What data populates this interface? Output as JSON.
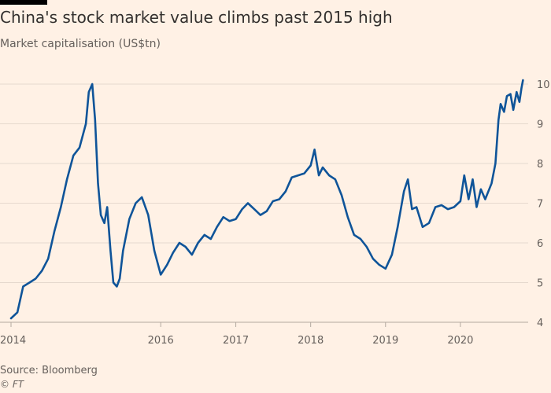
{
  "header": {
    "title": "China's stock market value climbs past 2015 high",
    "subtitle": "Market capitalisation (US$tn)"
  },
  "footer": {
    "source": "Source: Bloomberg",
    "credit": "© FT"
  },
  "colors": {
    "background": "#fff1e5",
    "line": "#0f5499",
    "grid": "#e6d9ce",
    "text": "#66605c"
  },
  "chart_data": {
    "type": "line",
    "title": "China's stock market value climbs past 2015 high",
    "ylabel": "Market capitalisation (US$tn)",
    "xlabel": "",
    "ylim": [
      4,
      10
    ],
    "xlim": [
      "2014-01-01",
      "2020-11-15"
    ],
    "grid": true,
    "y_axis_position": "right",
    "y_ticks": [
      "4",
      "5",
      "6",
      "7",
      "8",
      "9",
      "10"
    ],
    "x_ticks": [
      "2014",
      "2016",
      "2017",
      "2018",
      "2019",
      "2020"
    ],
    "series": [
      {
        "name": "",
        "points": [
          [
            "2014-01-01",
            4.1
          ],
          [
            "2014-02-01",
            4.25
          ],
          [
            "2014-03-01",
            4.9
          ],
          [
            "2014-04-01",
            5.0
          ],
          [
            "2014-05-01",
            5.1
          ],
          [
            "2014-06-01",
            5.3
          ],
          [
            "2014-07-01",
            5.6
          ],
          [
            "2014-08-01",
            6.3
          ],
          [
            "2014-09-01",
            6.9
          ],
          [
            "2014-10-01",
            7.6
          ],
          [
            "2014-11-01",
            8.2
          ],
          [
            "2014-12-01",
            8.4
          ],
          [
            "2015-01-01",
            9.0
          ],
          [
            "2015-01-15",
            9.8
          ],
          [
            "2015-02-01",
            10.0
          ],
          [
            "2015-02-15",
            9.1
          ],
          [
            "2015-03-01",
            7.5
          ],
          [
            "2015-03-15",
            6.7
          ],
          [
            "2015-04-01",
            6.5
          ],
          [
            "2015-04-15",
            6.9
          ],
          [
            "2015-05-01",
            5.8
          ],
          [
            "2015-05-15",
            5.0
          ],
          [
            "2015-06-01",
            4.9
          ],
          [
            "2015-06-15",
            5.1
          ],
          [
            "2015-07-01",
            5.8
          ],
          [
            "2015-08-01",
            6.6
          ],
          [
            "2015-09-01",
            7.0
          ],
          [
            "2015-10-01",
            7.15
          ],
          [
            "2015-11-01",
            6.7
          ],
          [
            "2015-12-01",
            5.8
          ],
          [
            "2016-01-01",
            5.2
          ],
          [
            "2016-02-01",
            5.45
          ],
          [
            "2016-03-01",
            5.75
          ],
          [
            "2016-04-01",
            6.0
          ],
          [
            "2016-05-01",
            5.9
          ],
          [
            "2016-06-01",
            5.7
          ],
          [
            "2016-07-01",
            6.0
          ],
          [
            "2016-08-01",
            6.2
          ],
          [
            "2016-09-01",
            6.1
          ],
          [
            "2016-10-01",
            6.4
          ],
          [
            "2016-11-01",
            6.65
          ],
          [
            "2016-12-01",
            6.55
          ],
          [
            "2017-01-01",
            6.6
          ],
          [
            "2017-02-01",
            6.85
          ],
          [
            "2017-03-01",
            7.0
          ],
          [
            "2017-04-01",
            6.85
          ],
          [
            "2017-05-01",
            6.7
          ],
          [
            "2017-06-01",
            6.8
          ],
          [
            "2017-07-01",
            7.05
          ],
          [
            "2017-08-01",
            7.1
          ],
          [
            "2017-09-01",
            7.3
          ],
          [
            "2017-10-01",
            7.65
          ],
          [
            "2017-11-01",
            7.7
          ],
          [
            "2017-12-01",
            7.75
          ],
          [
            "2018-01-01",
            7.95
          ],
          [
            "2018-01-20",
            8.35
          ],
          [
            "2018-02-10",
            7.7
          ],
          [
            "2018-03-01",
            7.9
          ],
          [
            "2018-04-01",
            7.7
          ],
          [
            "2018-05-01",
            7.6
          ],
          [
            "2018-06-01",
            7.2
          ],
          [
            "2018-07-01",
            6.65
          ],
          [
            "2018-08-01",
            6.2
          ],
          [
            "2018-09-01",
            6.1
          ],
          [
            "2018-10-01",
            5.9
          ],
          [
            "2018-11-01",
            5.6
          ],
          [
            "2018-12-01",
            5.45
          ],
          [
            "2019-01-01",
            5.35
          ],
          [
            "2019-02-01",
            5.7
          ],
          [
            "2019-03-01",
            6.4
          ],
          [
            "2019-04-01",
            7.3
          ],
          [
            "2019-04-20",
            7.6
          ],
          [
            "2019-05-10",
            6.85
          ],
          [
            "2019-06-01",
            6.9
          ],
          [
            "2019-07-01",
            6.4
          ],
          [
            "2019-08-01",
            6.5
          ],
          [
            "2019-09-01",
            6.9
          ],
          [
            "2019-10-01",
            6.95
          ],
          [
            "2019-11-01",
            6.85
          ],
          [
            "2019-12-01",
            6.9
          ],
          [
            "2020-01-01",
            7.05
          ],
          [
            "2020-01-20",
            7.7
          ],
          [
            "2020-02-10",
            7.1
          ],
          [
            "2020-03-01",
            7.6
          ],
          [
            "2020-03-20",
            6.9
          ],
          [
            "2020-04-10",
            7.35
          ],
          [
            "2020-05-01",
            7.1
          ],
          [
            "2020-06-01",
            7.5
          ],
          [
            "2020-06-20",
            8.0
          ],
          [
            "2020-07-05",
            9.1
          ],
          [
            "2020-07-15",
            9.5
          ],
          [
            "2020-08-01",
            9.3
          ],
          [
            "2020-08-15",
            9.7
          ],
          [
            "2020-09-01",
            9.75
          ],
          [
            "2020-09-15",
            9.35
          ],
          [
            "2020-10-01",
            9.8
          ],
          [
            "2020-10-15",
            9.55
          ],
          [
            "2020-10-25",
            9.9
          ],
          [
            "2020-11-01",
            10.1
          ]
        ]
      }
    ]
  }
}
